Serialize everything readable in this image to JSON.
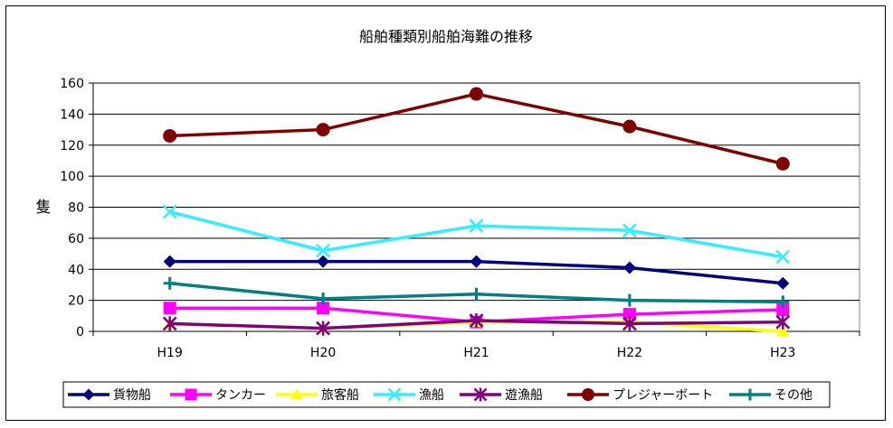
{
  "chart_data": {
    "type": "line",
    "title": "船舶種類別船舶海難の推移",
    "xlabel": "",
    "ylabel": "隻",
    "categories": [
      "H19",
      "H20",
      "H21",
      "H22",
      "H23"
    ],
    "ylim": [
      0,
      160
    ],
    "yticks": [
      0,
      20,
      40,
      60,
      80,
      100,
      120,
      140,
      160
    ],
    "grid": "horizontal",
    "legend_position": "bottom",
    "series": [
      {
        "name": "貨物船",
        "values": [
          45,
          45,
          45,
          41,
          31
        ],
        "color": "#000080",
        "marker": "diamond"
      },
      {
        "name": "タンカー",
        "values": [
          15,
          15,
          6,
          11,
          14
        ],
        "color": "#FF00FF",
        "marker": "square"
      },
      {
        "name": "旅客船",
        "values": [
          5,
          2,
          6,
          6,
          0
        ],
        "color": "#FFFF00",
        "marker": "triangle"
      },
      {
        "name": "漁船",
        "values": [
          77,
          52,
          68,
          65,
          48
        ],
        "color": "#33EEFF",
        "marker": "x"
      },
      {
        "name": "遊漁船",
        "values": [
          5,
          2,
          7,
          5,
          6
        ],
        "color": "#800080",
        "marker": "star"
      },
      {
        "name": "プレジャーボート",
        "values": [
          126,
          130,
          153,
          132,
          108
        ],
        "color": "#800000",
        "marker": "circle"
      },
      {
        "name": "その他",
        "values": [
          31,
          21,
          24,
          20,
          19
        ],
        "color": "#008080",
        "marker": "plus"
      }
    ]
  }
}
